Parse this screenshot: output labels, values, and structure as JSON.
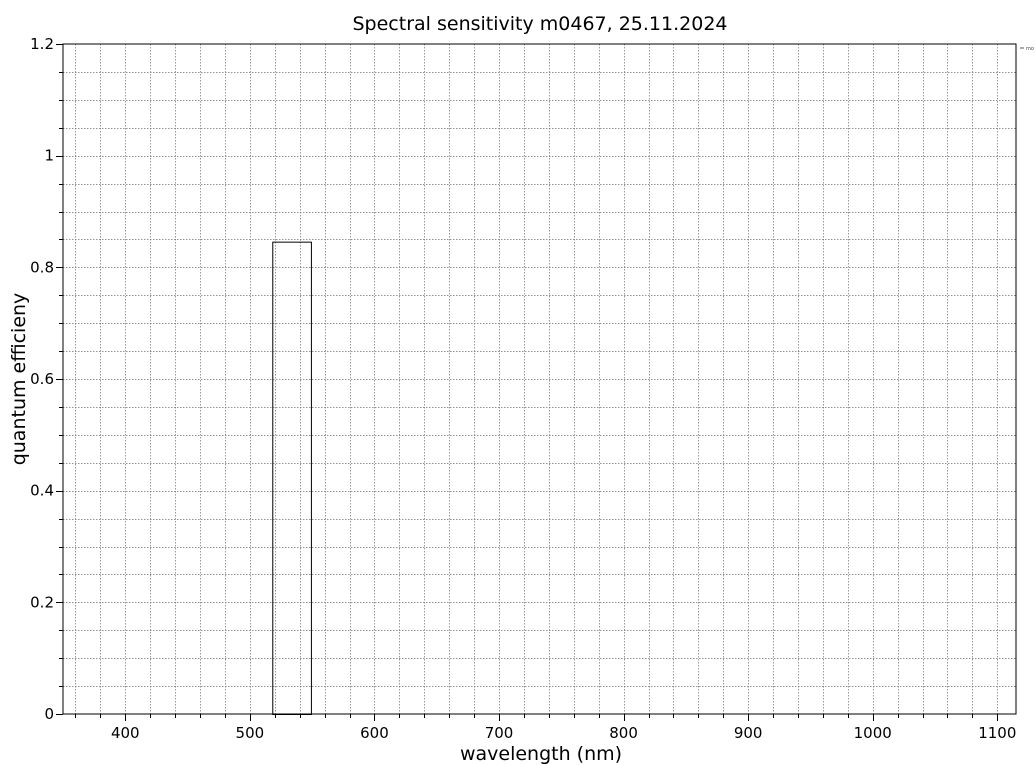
{
  "chart_data": {
    "type": "bar",
    "title": "Spectral sensitivity m0467, 25.11.2024",
    "xlabel": "wavelength (nm)",
    "ylabel": "quantum efficieny",
    "xlim": [
      350,
      1115
    ],
    "ylim": [
      0,
      1.2
    ],
    "xticks": [
      400,
      500,
      600,
      700,
      800,
      900,
      1000,
      1100
    ],
    "xtick_labels": [
      "400",
      "500",
      "600",
      "700",
      "800",
      "900",
      "1000",
      "1100"
    ],
    "yticks": [
      0,
      0.2,
      0.4,
      0.6,
      0.8,
      1,
      1.2
    ],
    "ytick_labels": [
      "0",
      "0.2",
      "0.4",
      "0.6",
      "0.8",
      "1",
      "1.2"
    ],
    "x_minor_step": 20,
    "y_minor_step": 0.05,
    "grid": true,
    "legend": {
      "position": "top-right",
      "label": "mo"
    },
    "series": [
      {
        "name": "mo",
        "bars": [
          {
            "x_start": 518,
            "x_end": 549,
            "value": 0.846
          }
        ]
      }
    ],
    "colors": {
      "frame": "#000000",
      "grid": "#707070",
      "bar_stroke": "#000000",
      "bar_fill": "none",
      "background": "#ffffff"
    }
  }
}
